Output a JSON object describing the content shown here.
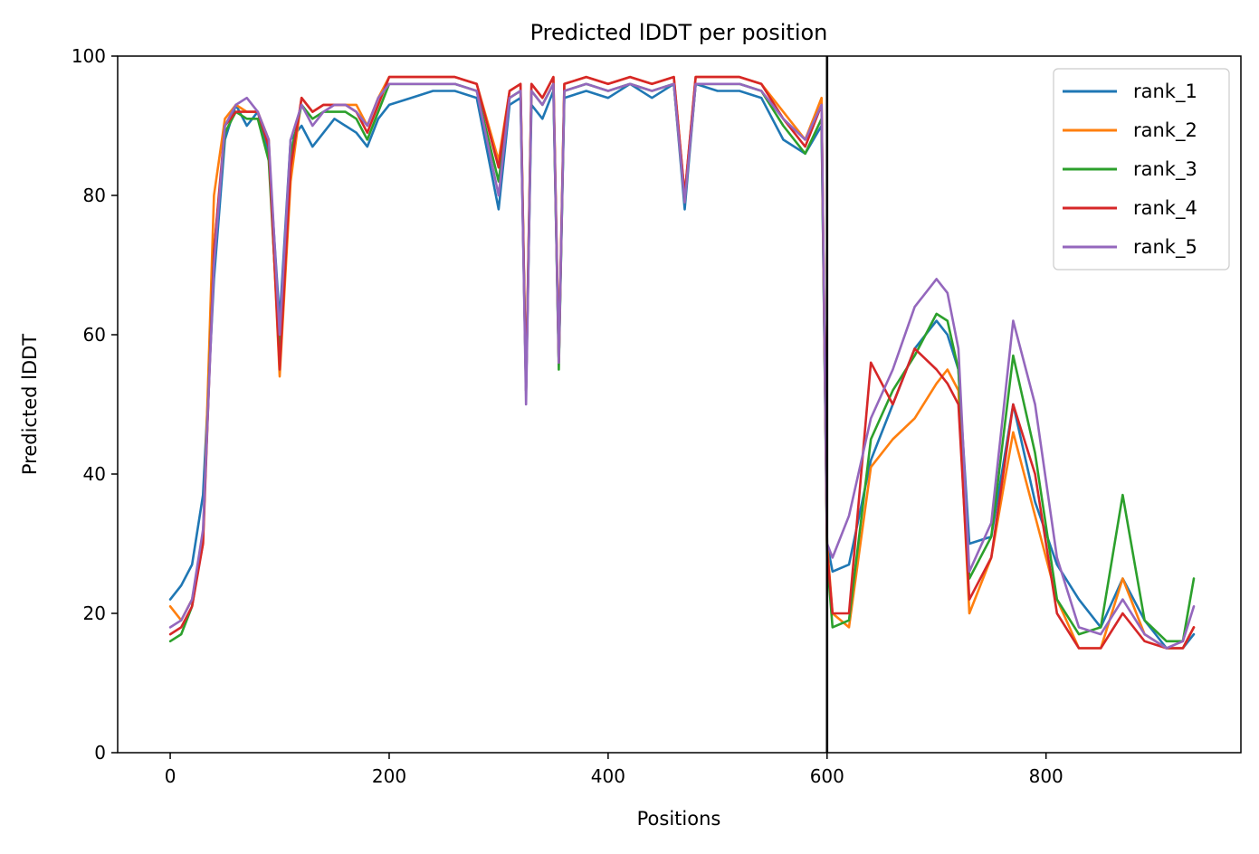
{
  "chart_data": {
    "type": "line",
    "title": "Predicted lDDT per position",
    "xlabel": "Positions",
    "ylabel": "Predicted lDDT",
    "xlim": [
      -48,
      978
    ],
    "ylim": [
      0,
      100
    ],
    "xticks": [
      0,
      200,
      400,
      600,
      800
    ],
    "yticks": [
      0,
      20,
      40,
      60,
      80,
      100
    ],
    "grid": false,
    "legend_position": "top-right",
    "vline": {
      "x": 600,
      "color": "#000000"
    },
    "series": [
      {
        "name": "rank_1",
        "color": "#1f77b4",
        "x": [
          0,
          10,
          20,
          30,
          40,
          50,
          60,
          70,
          80,
          90,
          100,
          110,
          120,
          130,
          140,
          150,
          160,
          170,
          180,
          190,
          200,
          220,
          240,
          260,
          280,
          300,
          310,
          320,
          325,
          330,
          340,
          350,
          355,
          360,
          380,
          400,
          420,
          440,
          460,
          470,
          480,
          500,
          520,
          540,
          560,
          580,
          595,
          600,
          605,
          620,
          640,
          660,
          680,
          700,
          710,
          720,
          730,
          750,
          770,
          790,
          810,
          830,
          850,
          870,
          890,
          910,
          925,
          935
        ],
        "y": [
          22,
          24,
          27,
          37,
          68,
          88,
          93,
          90,
          92,
          86,
          62,
          88,
          90,
          87,
          89,
          91,
          90,
          89,
          87,
          91,
          93,
          94,
          95,
          95,
          94,
          78,
          93,
          94,
          52,
          93,
          91,
          95,
          56,
          94,
          95,
          94,
          96,
          94,
          96,
          78,
          96,
          95,
          95,
          94,
          88,
          86,
          90,
          30,
          26,
          27,
          42,
          50,
          58,
          62,
          60,
          55,
          30,
          31,
          50,
          36,
          27,
          22,
          18,
          25,
          19,
          15,
          15,
          17
        ]
      },
      {
        "name": "rank_2",
        "color": "#ff7f0e",
        "x": [
          0,
          10,
          20,
          30,
          40,
          50,
          60,
          70,
          80,
          90,
          100,
          110,
          120,
          130,
          140,
          150,
          160,
          170,
          180,
          190,
          200,
          220,
          240,
          260,
          280,
          300,
          310,
          320,
          325,
          330,
          340,
          350,
          355,
          360,
          380,
          400,
          420,
          440,
          460,
          470,
          480,
          500,
          520,
          540,
          560,
          580,
          595,
          600,
          605,
          620,
          640,
          660,
          680,
          700,
          710,
          720,
          730,
          750,
          770,
          790,
          810,
          830,
          850,
          870,
          890,
          910,
          925,
          935
        ],
        "y": [
          21,
          19,
          22,
          30,
          80,
          91,
          93,
          92,
          92,
          88,
          54,
          82,
          94,
          92,
          93,
          93,
          93,
          93,
          90,
          94,
          97,
          97,
          97,
          97,
          96,
          85,
          95,
          96,
          53,
          96,
          94,
          97,
          57,
          96,
          97,
          96,
          97,
          96,
          97,
          80,
          97,
          97,
          97,
          96,
          92,
          88,
          94,
          30,
          20,
          18,
          41,
          45,
          48,
          53,
          55,
          52,
          20,
          28,
          46,
          34,
          22,
          15,
          15,
          25,
          17,
          15,
          15,
          18
        ]
      },
      {
        "name": "rank_3",
        "color": "#2ca02c",
        "x": [
          0,
          10,
          20,
          30,
          40,
          50,
          60,
          70,
          80,
          90,
          100,
          110,
          120,
          130,
          140,
          150,
          160,
          170,
          180,
          190,
          200,
          220,
          240,
          260,
          280,
          300,
          310,
          320,
          325,
          330,
          340,
          350,
          355,
          360,
          380,
          400,
          420,
          440,
          460,
          470,
          480,
          500,
          520,
          540,
          560,
          580,
          595,
          600,
          605,
          620,
          640,
          660,
          680,
          700,
          710,
          720,
          730,
          750,
          770,
          790,
          810,
          830,
          850,
          870,
          890,
          910,
          925,
          935
        ],
        "y": [
          16,
          17,
          21,
          31,
          72,
          89,
          92,
          91,
          91,
          85,
          57,
          86,
          93,
          91,
          92,
          92,
          92,
          91,
          88,
          92,
          96,
          96,
          96,
          96,
          95,
          82,
          94,
          95,
          52,
          95,
          93,
          96,
          55,
          95,
          96,
          95,
          96,
          95,
          96,
          79,
          96,
          96,
          96,
          95,
          90,
          86,
          91,
          28,
          18,
          19,
          45,
          52,
          57,
          63,
          62,
          55,
          25,
          31,
          57,
          43,
          22,
          17,
          18,
          37,
          19,
          16,
          16,
          25
        ]
      },
      {
        "name": "rank_4",
        "color": "#d62728",
        "x": [
          0,
          10,
          20,
          30,
          40,
          50,
          60,
          70,
          80,
          90,
          100,
          110,
          120,
          130,
          140,
          150,
          160,
          170,
          180,
          190,
          200,
          220,
          240,
          260,
          280,
          300,
          310,
          320,
          325,
          330,
          340,
          350,
          355,
          360,
          380,
          400,
          420,
          440,
          460,
          470,
          480,
          500,
          520,
          540,
          560,
          580,
          595,
          600,
          605,
          620,
          640,
          660,
          680,
          700,
          710,
          720,
          730,
          750,
          770,
          790,
          810,
          830,
          850,
          870,
          890,
          910,
          925,
          935
        ],
        "y": [
          17,
          18,
          21,
          30,
          72,
          90,
          92,
          92,
          92,
          87,
          55,
          84,
          94,
          92,
          93,
          93,
          93,
          92,
          89,
          93,
          97,
          97,
          97,
          97,
          96,
          84,
          95,
          96,
          52,
          96,
          94,
          97,
          56,
          96,
          97,
          96,
          97,
          96,
          97,
          80,
          97,
          97,
          97,
          96,
          91,
          87,
          93,
          29,
          20,
          20,
          56,
          50,
          58,
          55,
          53,
          50,
          22,
          28,
          50,
          40,
          20,
          15,
          15,
          20,
          16,
          15,
          15,
          18
        ]
      },
      {
        "name": "rank_5",
        "color": "#9467bd",
        "x": [
          0,
          10,
          20,
          30,
          40,
          50,
          60,
          70,
          80,
          90,
          100,
          110,
          120,
          130,
          140,
          150,
          160,
          170,
          180,
          190,
          200,
          220,
          240,
          260,
          280,
          300,
          310,
          320,
          325,
          330,
          340,
          350,
          355,
          360,
          380,
          400,
          420,
          440,
          460,
          470,
          480,
          500,
          520,
          540,
          560,
          580,
          595,
          600,
          605,
          620,
          640,
          660,
          680,
          700,
          710,
          720,
          730,
          750,
          770,
          790,
          810,
          830,
          850,
          870,
          890,
          910,
          925,
          935
        ],
        "y": [
          18,
          19,
          22,
          32,
          70,
          90,
          93,
          94,
          92,
          88,
          60,
          88,
          93,
          90,
          92,
          93,
          93,
          92,
          90,
          94,
          96,
          96,
          96,
          96,
          95,
          80,
          94,
          95,
          50,
          95,
          93,
          96,
          56,
          95,
          96,
          95,
          96,
          95,
          96,
          79,
          96,
          96,
          96,
          95,
          91,
          88,
          93,
          30,
          28,
          34,
          48,
          55,
          64,
          68,
          66,
          58,
          26,
          33,
          62,
          50,
          28,
          18,
          17,
          22,
          17,
          15,
          16,
          21
        ]
      }
    ]
  }
}
